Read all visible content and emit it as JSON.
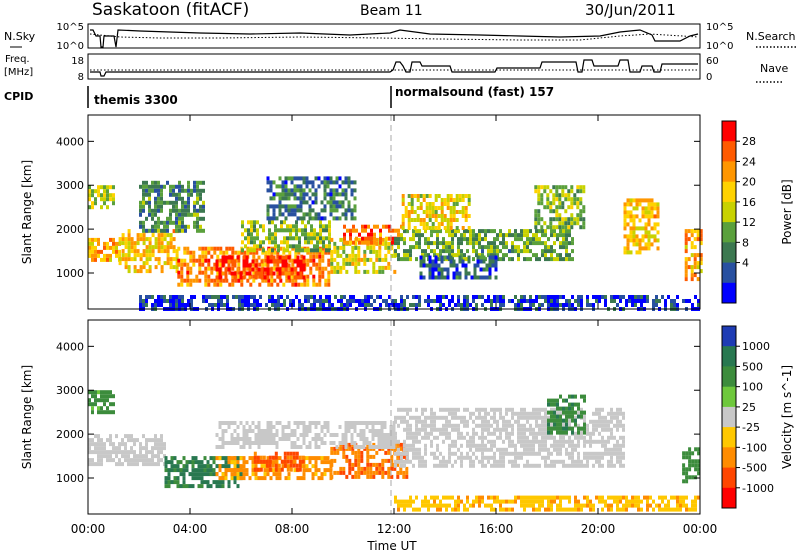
{
  "header": {
    "title": "Saskatoon (fitACF)",
    "beam": "Beam 11",
    "date": "30/Jun/2011"
  },
  "status_panels": {
    "nsky": {
      "label": "N.Sky",
      "ticks": [
        "10^5",
        "10^0"
      ],
      "right_ticks": [
        "10^5",
        "10^0"
      ],
      "right_label": "N.Search"
    },
    "freq": {
      "label_line1": "Freq.",
      "label_line2": "[MHz]",
      "ticks": [
        "18",
        "8"
      ],
      "right_ticks": [
        "60",
        "0"
      ],
      "right_label": "Nave"
    },
    "cpid": {
      "label": "CPID",
      "segments": [
        {
          "text": "themis 3300",
          "start_hour": 0
        },
        {
          "text": "normalsound (fast) 157",
          "start_hour": 12
        }
      ]
    }
  },
  "chart_data": [
    {
      "type": "heatmap",
      "ylabel": "Slant Range [km]",
      "xlabel": "",
      "yticks": [
        1000,
        2000,
        3000,
        4000
      ],
      "ylim": [
        180,
        4600
      ],
      "xlim": [
        0,
        24
      ],
      "colorbar": {
        "label": "Power [dB]",
        "ticks": [
          "28",
          "24",
          "20",
          "16",
          "12",
          "8",
          "4"
        ],
        "colors": [
          "#ff0000",
          "#ff5a00",
          "#ff9600",
          "#ffd200",
          "#c8d200",
          "#5aa03c",
          "#3c7850",
          "#2850a0",
          "#0000ff"
        ]
      },
      "series": [
        {
          "t0": 0.0,
          "t1": 1.0,
          "r0": 2500,
          "r1": 3000,
          "v": 16
        },
        {
          "t0": 0.0,
          "t1": 1.2,
          "r0": 1300,
          "r1": 1800,
          "v": 22
        },
        {
          "t0": 1.2,
          "t1": 3.5,
          "r0": 1000,
          "r1": 2000,
          "v": 20
        },
        {
          "t0": 2.0,
          "t1": 4.5,
          "r0": 2000,
          "r1": 3100,
          "v": 10
        },
        {
          "t0": 3.5,
          "t1": 9.5,
          "r0": 700,
          "r1": 1600,
          "v": 24
        },
        {
          "t0": 5.0,
          "t1": 8.5,
          "r0": 900,
          "r1": 1400,
          "v": 29
        },
        {
          "t0": 6.0,
          "t1": 9.5,
          "r0": 1500,
          "r1": 2200,
          "v": 14
        },
        {
          "t0": 7.0,
          "t1": 10.5,
          "r0": 2200,
          "r1": 3200,
          "v": 8
        },
        {
          "t0": 9.5,
          "t1": 12.0,
          "r0": 1000,
          "r1": 1800,
          "v": 18
        },
        {
          "t0": 10.0,
          "t1": 12.3,
          "r0": 1700,
          "r1": 2100,
          "v": 26
        },
        {
          "t0": 12.0,
          "t1": 19.0,
          "r0": 1300,
          "r1": 2000,
          "v": 12
        },
        {
          "t0": 12.3,
          "t1": 15.0,
          "r0": 2000,
          "r1": 2800,
          "v": 18
        },
        {
          "t0": 13.0,
          "t1": 16.0,
          "r0": 900,
          "r1": 1400,
          "v": 6
        },
        {
          "t0": 17.5,
          "t1": 19.5,
          "r0": 2000,
          "r1": 3000,
          "v": 14
        },
        {
          "t0": 21.0,
          "t1": 22.3,
          "r0": 1500,
          "r1": 2700,
          "v": 20
        },
        {
          "t0": 23.4,
          "t1": 24.0,
          "r0": 900,
          "r1": 2000,
          "v": 22
        },
        {
          "t0": 2.0,
          "t1": 24.0,
          "r0": 180,
          "r1": 500,
          "v": 4
        }
      ]
    },
    {
      "type": "heatmap",
      "ylabel": "Slant Range [km]",
      "xlabel": "Time UT",
      "xticks": [
        "00:00",
        "04:00",
        "08:00",
        "12:00",
        "16:00",
        "20:00",
        "00:00"
      ],
      "yticks": [
        1000,
        2000,
        3000,
        4000
      ],
      "ylim": [
        180,
        4600
      ],
      "xlim": [
        0,
        24
      ],
      "colorbar": {
        "label": "Velocity [m s^-1]",
        "ticks": [
          "1000",
          "500",
          "100",
          "25",
          "-25",
          "-100",
          "-500",
          "-1000"
        ],
        "colors": [
          "#1e3cb4",
          "#287850",
          "#3c8c3c",
          "#6ec83c",
          "#c8c8c8",
          "#ffc800",
          "#ff8c00",
          "#ff4600",
          "#ff0000"
        ]
      },
      "series": [
        {
          "t0": 0.0,
          "t1": 1.0,
          "r0": 2500,
          "r1": 3000,
          "v": 150
        },
        {
          "t0": 0.0,
          "t1": 3.0,
          "r0": 1300,
          "r1": 2000,
          "v": 0
        },
        {
          "t0": 3.0,
          "t1": 6.0,
          "r0": 800,
          "r1": 1500,
          "v": 600
        },
        {
          "t0": 5.0,
          "t1": 9.5,
          "r0": 1000,
          "r1": 1500,
          "v": -120
        },
        {
          "t0": 6.5,
          "t1": 8.5,
          "r0": 1200,
          "r1": 1600,
          "v": -600
        },
        {
          "t0": 9.5,
          "t1": 12.5,
          "r0": 1000,
          "r1": 1800,
          "v": -450
        },
        {
          "t0": 5.0,
          "t1": 12.0,
          "r0": 1700,
          "r1": 2300,
          "v": 0
        },
        {
          "t0": 12.0,
          "t1": 21.0,
          "r0": 1300,
          "r1": 2600,
          "v": 0
        },
        {
          "t0": 18.0,
          "t1": 19.5,
          "r0": 2000,
          "r1": 2900,
          "v": 400
        },
        {
          "t0": 23.3,
          "t1": 24.0,
          "r0": 900,
          "r1": 1700,
          "v": 300
        },
        {
          "t0": 12.0,
          "t1": 24.0,
          "r0": 250,
          "r1": 600,
          "v": -80
        }
      ]
    }
  ]
}
